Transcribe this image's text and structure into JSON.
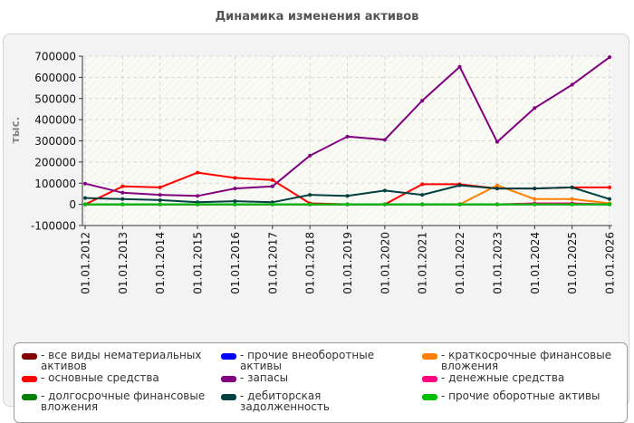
{
  "chart_data": {
    "type": "line",
    "title": "Динамика изменения активов",
    "ylabel": "тыс.",
    "xlabel": "",
    "ylim": [
      -100000,
      700000
    ],
    "yticks": [
      -100000,
      0,
      100000,
      200000,
      300000,
      400000,
      500000,
      600000,
      700000
    ],
    "grid": true,
    "legend_position": "bottom",
    "categories": [
      "01.01.2012",
      "01.01.2013",
      "01.01.2014",
      "01.01.2015",
      "01.01.2016",
      "01.01.2017",
      "01.01.2018",
      "01.01.2019",
      "01.01.2020",
      "01.01.2021",
      "01.01.2022",
      "01.01.2023",
      "01.01.2024",
      "01.01.2025",
      "01.01.2026"
    ],
    "series": [
      {
        "name": "- все виды нематериальных активов",
        "color": "#800000",
        "values": [
          0,
          0,
          0,
          0,
          0,
          0,
          0,
          0,
          0,
          0,
          0,
          0,
          0,
          0,
          0
        ]
      },
      {
        "name": "- прочие внеоборотные активы",
        "color": "#0000ff",
        "values": [
          0,
          0,
          0,
          0,
          0,
          0,
          0,
          0,
          0,
          0,
          0,
          0,
          0,
          0,
          0
        ]
      },
      {
        "name": "- краткосрочные финансовые вложения",
        "color": "#ff8000",
        "values": [
          0,
          0,
          0,
          0,
          0,
          0,
          0,
          0,
          0,
          0,
          0,
          90000,
          25000,
          25000,
          5000
        ]
      },
      {
        "name": "- основные средства",
        "color": "#ff0000",
        "values": [
          0,
          85000,
          80000,
          150000,
          125000,
          115000,
          5000,
          0,
          0,
          95000,
          95000,
          75000,
          75000,
          80000,
          80000
        ]
      },
      {
        "name": "- запасы",
        "color": "#800080",
        "values": [
          98000,
          55000,
          45000,
          40000,
          75000,
          85000,
          230000,
          320000,
          305000,
          490000,
          650000,
          295000,
          455000,
          565000,
          695000
        ]
      },
      {
        "name": "- денежные средства",
        "color": "#ff0080",
        "values": [
          0,
          0,
          0,
          0,
          0,
          0,
          0,
          0,
          0,
          0,
          0,
          0,
          5000,
          5000,
          0
        ]
      },
      {
        "name": "- долгосрочные финансовые вложения",
        "color": "#008000",
        "values": [
          0,
          0,
          0,
          0,
          0,
          0,
          0,
          0,
          0,
          0,
          0,
          0,
          0,
          0,
          0
        ]
      },
      {
        "name": "- дебиторская задолженность",
        "color": "#004040",
        "values": [
          30000,
          25000,
          20000,
          10000,
          15000,
          10000,
          45000,
          40000,
          65000,
          45000,
          90000,
          75000,
          75000,
          80000,
          25000
        ]
      },
      {
        "name": "- прочие оборотные активы",
        "color": "#00c000",
        "values": [
          0,
          0,
          0,
          0,
          0,
          0,
          0,
          0,
          0,
          0,
          0,
          0,
          0,
          0,
          0
        ]
      }
    ]
  }
}
